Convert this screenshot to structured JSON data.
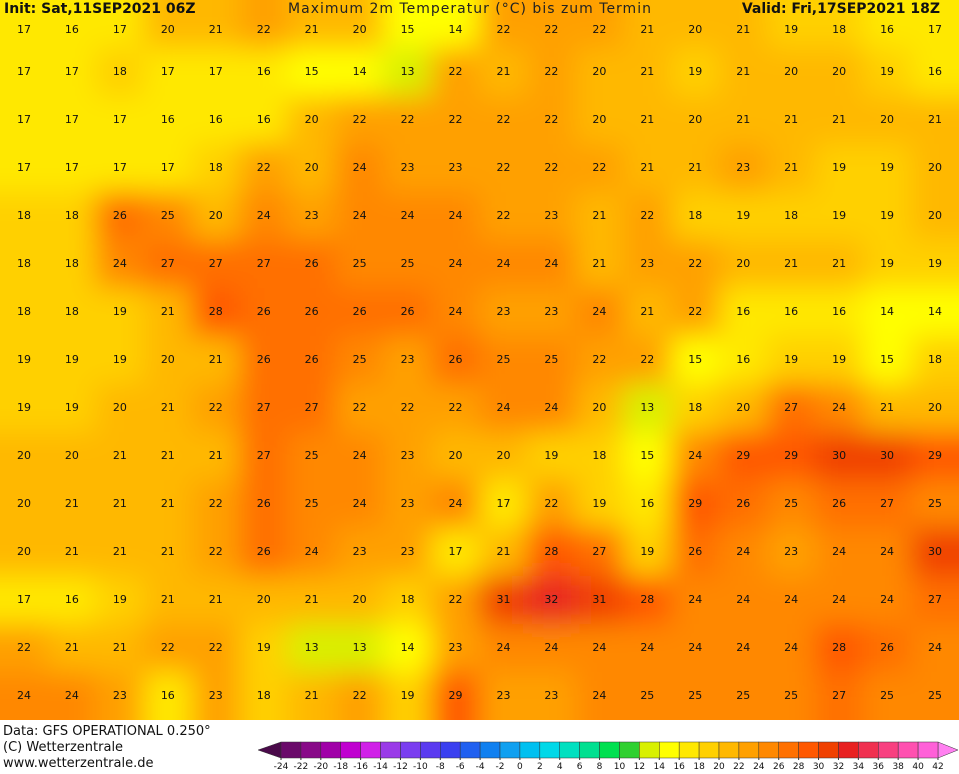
{
  "header": {
    "init": "Init: Sat,11SEP2021 06Z",
    "title": "Maximum 2m Temperatur (°C) bis zum Termin",
    "valid": "Valid: Fri,17SEP2021 18Z"
  },
  "field": {
    "values": [
      [
        17,
        16,
        17,
        20,
        21,
        22,
        21,
        20,
        15,
        14,
        22,
        22,
        22,
        21,
        20,
        21,
        19,
        18,
        16,
        17
      ],
      [
        17,
        17,
        18,
        17,
        17,
        16,
        15,
        14,
        13,
        22,
        21,
        22,
        20,
        21,
        19,
        21,
        20,
        20,
        19,
        16
      ],
      [
        17,
        17,
        17,
        16,
        16,
        16,
        20,
        22,
        22,
        22,
        22,
        22,
        20,
        21,
        20,
        21,
        21,
        21,
        20,
        21
      ],
      [
        17,
        17,
        17,
        17,
        18,
        22,
        20,
        24,
        23,
        23,
        22,
        22,
        22,
        21,
        21,
        23,
        21,
        19,
        19,
        20
      ],
      [
        18,
        18,
        26,
        25,
        20,
        24,
        23,
        24,
        24,
        24,
        22,
        23,
        21,
        22,
        18,
        19,
        18,
        19,
        19,
        20
      ],
      [
        18,
        18,
        24,
        27,
        27,
        27,
        26,
        25,
        25,
        24,
        24,
        24,
        21,
        23,
        22,
        20,
        21,
        21,
        19,
        19
      ],
      [
        18,
        18,
        19,
        21,
        28,
        26,
        26,
        26,
        26,
        24,
        23,
        23,
        24,
        21,
        22,
        16,
        16,
        16,
        14,
        14
      ],
      [
        19,
        19,
        19,
        20,
        21,
        26,
        26,
        25,
        23,
        26,
        25,
        25,
        22,
        22,
        15,
        16,
        19,
        19,
        15,
        18
      ],
      [
        19,
        19,
        20,
        21,
        22,
        27,
        27,
        22,
        22,
        22,
        24,
        24,
        20,
        13,
        18,
        20,
        27,
        24,
        21,
        20
      ],
      [
        20,
        20,
        21,
        21,
        21,
        27,
        25,
        24,
        23,
        20,
        20,
        19,
        18,
        15,
        24,
        29,
        29,
        30,
        30,
        29
      ],
      [
        20,
        21,
        21,
        21,
        22,
        26,
        25,
        24,
        23,
        24,
        17,
        22,
        19,
        16,
        29,
        26,
        25,
        26,
        27,
        25
      ],
      [
        20,
        21,
        21,
        21,
        22,
        26,
        24,
        23,
        23,
        17,
        21,
        28,
        27,
        19,
        26,
        24,
        23,
        24,
        24,
        30
      ],
      [
        17,
        16,
        19,
        21,
        21,
        20,
        21,
        20,
        18,
        22,
        31,
        32,
        31,
        28,
        24,
        24,
        24,
        24,
        24,
        27
      ],
      [
        22,
        21,
        21,
        22,
        22,
        19,
        13,
        13,
        14,
        23,
        24,
        24,
        24,
        24,
        24,
        24,
        24,
        28,
        26,
        24
      ],
      [
        24,
        24,
        23,
        16,
        23,
        18,
        21,
        22,
        19,
        29,
        23,
        23,
        24,
        25,
        25,
        25,
        25,
        27,
        25,
        25
      ]
    ]
  },
  "footer": {
    "data": "Data: GFS OPERATIONAL 0.250°",
    "copyright": "(C) Wetterzentrale",
    "url": "www.wetterzentrale.de"
  },
  "colorbar": {
    "ticks": [
      -24,
      -22,
      -20,
      -18,
      -16,
      -14,
      -12,
      -10,
      -8,
      -6,
      -4,
      -2,
      0,
      2,
      4,
      6,
      8,
      10,
      12,
      14,
      16,
      18,
      20,
      22,
      24,
      26,
      28,
      30,
      32,
      34,
      36,
      38,
      40,
      42
    ],
    "colors": [
      "#6a0a6a",
      "#880a88",
      "#a000a8",
      "#c000d0",
      "#d020e8",
      "#9a3ae8",
      "#7a3ef0",
      "#5a3af0",
      "#3a40f0",
      "#2060f0",
      "#1080f0",
      "#10a0f0",
      "#00c0f0",
      "#00d8e8",
      "#00e0c0",
      "#00e090",
      "#00e050",
      "#30d030",
      "#d8f000",
      "#ffff00",
      "#ffe800",
      "#ffd000",
      "#ffb800",
      "#ffa000",
      "#ff8800",
      "#ff7000",
      "#ff5800",
      "#f04000",
      "#e82020",
      "#f03050",
      "#f84080",
      "#ff50b0",
      "#ff60d8"
    ],
    "under": "#4a0a4a",
    "over": "#ff80f0"
  }
}
